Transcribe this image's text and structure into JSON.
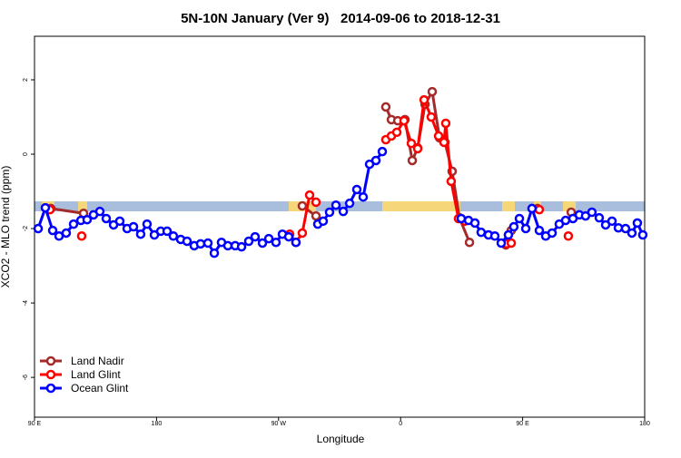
{
  "chart_data": {
    "type": "line",
    "title": "5N-10N January (Ver 9)   2014-09-06 to 2018-12-31",
    "x_label": "Longitude",
    "y_label": "XCO2 - MLO trend (ppm)",
    "xlim": [
      90,
      540
    ],
    "xticks": [
      {
        "value": 90,
        "label": "90 E"
      },
      {
        "value": 180,
        "label": "180"
      },
      {
        "value": 270,
        "label": "90 W"
      },
      {
        "value": 360,
        "label": "0"
      },
      {
        "value": 450,
        "label": "90 E"
      },
      {
        "value": 540,
        "label": "180"
      }
    ],
    "ylim": [
      -7.07,
      3.17
    ],
    "yticks": [
      -6,
      -4,
      -2,
      0,
      2
    ],
    "legend": "bottomleft",
    "series": [
      {
        "name": "Land Nadir",
        "color": "#a52a2a",
        "x": [
          102.1,
          126.2,
          null,
          287.5,
          297.6,
          null,
          349.1,
          353.2,
          357.9,
          363.2,
          368.6,
          372.6,
          378.0,
          383.3,
          388.7,
          392.7,
          398.0,
          403.4,
          410.8,
          null,
          437.6,
          441.6,
          null,
          461.0,
          null,
          485.8
        ],
        "values": [
          -1.46,
          -1.59,
          null,
          -1.39,
          -1.66,
          null,
          1.27,
          0.93,
          0.9,
          0.93,
          -0.17,
          0.17,
          1.34,
          1.68,
          0.44,
          0.32,
          -0.46,
          -1.71,
          -2.37,
          null,
          -2.44,
          -2.05,
          null,
          -1.46,
          null,
          -1.56
        ]
      },
      {
        "name": "Land Glint",
        "color": "#ff0000",
        "x": [
          101.4,
          null,
          124.8,
          null,
          278.2,
          282.8,
          287.5,
          292.9,
          297.6,
          null,
          349.1,
          353.2,
          357.2,
          362.5,
          367.9,
          372.6,
          377.3,
          382.6,
          388.0,
          392.0,
          393.3,
          397.3,
          402.7,
          407.4,
          null,
          438.2,
          441.6,
          null,
          462.3,
          null,
          483.7
        ],
        "values": [
          -1.49,
          null,
          -2.2,
          null,
          -2.15,
          -2.37,
          -2.12,
          -1.1,
          -1.29,
          null,
          0.39,
          0.49,
          0.59,
          0.9,
          0.29,
          0.15,
          1.46,
          1.0,
          0.49,
          0.32,
          0.83,
          -0.73,
          -1.73,
          -1.8,
          null,
          -2.41,
          -2.39,
          null,
          -1.49,
          null,
          -2.2
        ]
      },
      {
        "name": "Ocean Glint",
        "color": "#0000ff",
        "x": [
          92.7,
          98.0,
          103.4,
          108.1,
          113.4,
          118.8,
          124.2,
          128.8,
          133.5,
          138.2,
          142.9,
          148.3,
          152.9,
          158.3,
          163.0,
          168.3,
          173.0,
          178.4,
          183.1,
          187.8,
          192.4,
          197.8,
          202.5,
          207.8,
          212.5,
          217.9,
          222.6,
          227.9,
          232.6,
          238.0,
          242.7,
          248.0,
          252.7,
          258.1,
          262.8,
          268.1,
          272.8,
          277.5,
          282.8,
          null,
          298.9,
          302.9,
          307.6,
          312.3,
          317.7,
          322.4,
          327.7,
          332.4,
          337.1,
          341.8,
          346.5,
          null,
          404.7,
          410.1,
          414.8,
          419.4,
          424.8,
          429.5,
          434.2,
          439.5,
          443.5,
          447.6,
          452.3,
          456.9,
          462.3,
          467.0,
          471.7,
          477.0,
          481.7,
          487.1,
          491.8,
          496.4,
          501.1,
          506.5,
          511.2,
          515.9,
          520.6,
          525.9,
          530.6,
          534.6,
          538.6
        ],
        "values": [
          -2.0,
          -1.44,
          -2.05,
          -2.2,
          -2.12,
          -1.88,
          -1.78,
          -1.76,
          -1.63,
          -1.54,
          -1.73,
          -1.9,
          -1.8,
          -2.0,
          -1.95,
          -2.15,
          -1.88,
          -2.17,
          -2.07,
          -2.07,
          -2.2,
          -2.29,
          -2.34,
          -2.46,
          -2.41,
          -2.39,
          -2.66,
          -2.37,
          -2.46,
          -2.46,
          -2.49,
          -2.34,
          -2.22,
          -2.39,
          -2.27,
          -2.37,
          -2.15,
          -2.22,
          -2.37,
          null,
          -1.88,
          -1.8,
          -1.56,
          -1.37,
          -1.54,
          -1.32,
          -0.95,
          -1.15,
          -0.27,
          -0.17,
          0.07,
          null,
          -1.73,
          -1.78,
          -1.85,
          -2.1,
          -2.17,
          -2.2,
          -2.39,
          -2.17,
          -1.95,
          -1.73,
          -2.0,
          -1.46,
          -2.05,
          -2.2,
          -2.12,
          -1.88,
          -1.78,
          -1.73,
          -1.63,
          -1.66,
          -1.56,
          -1.71,
          -1.9,
          -1.8,
          -1.98,
          -2.0,
          -2.12,
          -1.85,
          -2.17
        ]
      }
    ]
  }
}
